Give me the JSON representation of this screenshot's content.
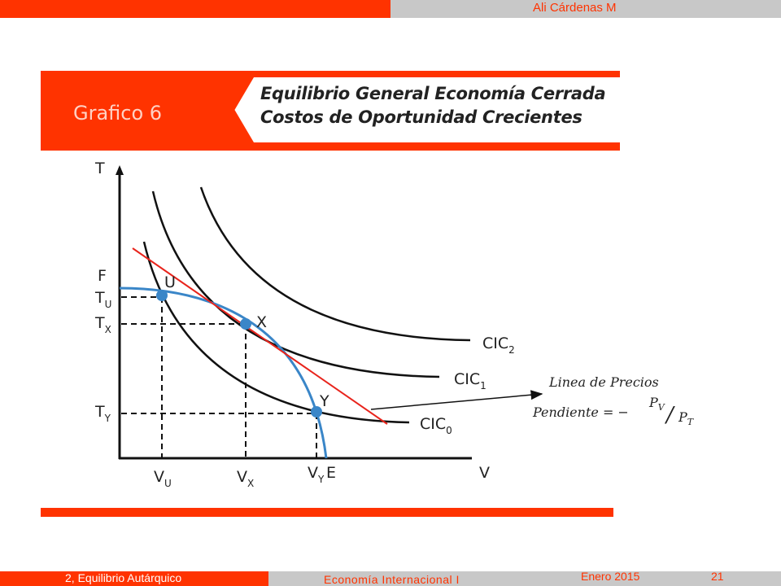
{
  "header": {
    "author": "Ali Cárdenas M"
  },
  "title": {
    "chart_number": "Grafico 6",
    "line1": "Equilibrio General Economía Cerrada",
    "line2": "Costos de Oportunidad Crecientes"
  },
  "diagram": {
    "axes": {
      "y": "T",
      "x": "V"
    },
    "intercepts": {
      "F": "F",
      "E": "E"
    },
    "ticks": {
      "tu_main": "T",
      "tu_sub": "U",
      "tx_main": "T",
      "tx_sub": "X",
      "ty_main": "T",
      "ty_sub": "Y",
      "vu_main": "V",
      "vu_sub": "U",
      "vx_main": "V",
      "vx_sub": "X",
      "vy_main": "V",
      "vy_sub": "Y"
    },
    "points": {
      "u": "U",
      "x": "X",
      "y": "Y"
    },
    "curves": {
      "cic0_main": "CIC",
      "cic0_sub": "0",
      "cic1_main": "CIC",
      "cic1_sub": "1",
      "cic2_main": "CIC",
      "cic2_sub": "2"
    },
    "price_line": {
      "label": "Linea de Precios",
      "slope_label": "Pendiente = −",
      "pv_main": "P",
      "pv_sub": "V",
      "slash": "/",
      "pt_main": "P",
      "pt_sub": "T"
    },
    "colors": {
      "frontier": "#3a86c8",
      "price_line": "#e8241c",
      "curves": "#111111"
    }
  },
  "footer": {
    "section": "2, Equilibrio Autárquico",
    "course": "Economía Internacional I",
    "date": "Enero 2015",
    "page": "21"
  }
}
